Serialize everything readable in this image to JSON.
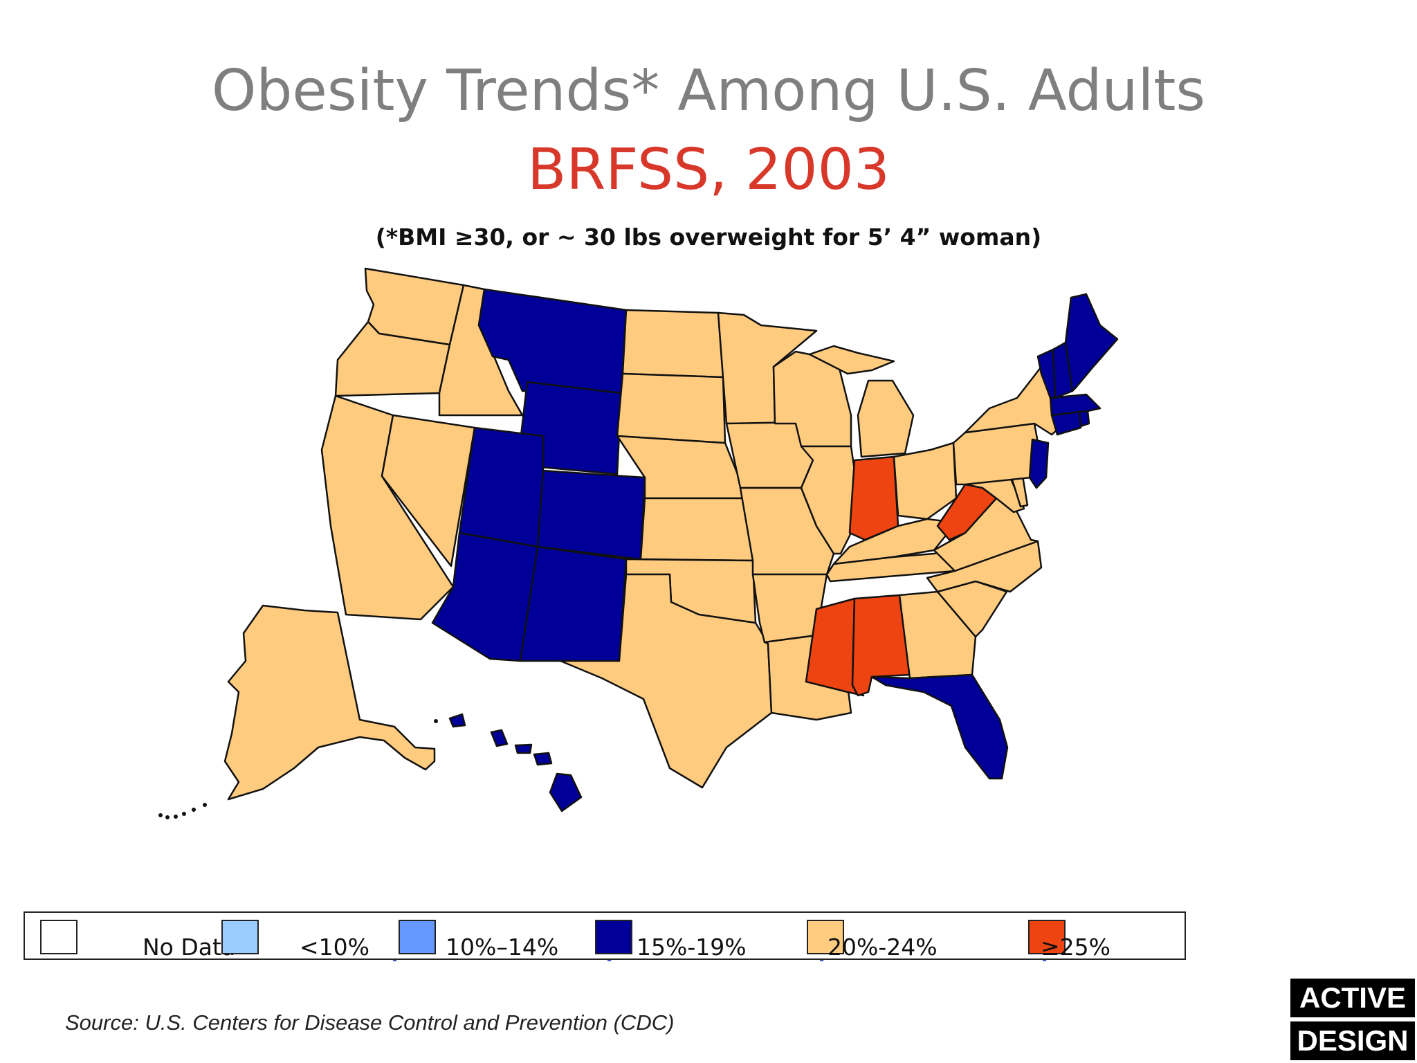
{
  "title": "Obesity Trends* Among U.S. Adults",
  "subtitle": "BRFSS, 2003",
  "note": "(*BMI ≥30, or ~ 30 lbs overweight for 5’ 4” woman)",
  "source": "Source: U.S. Centers for Disease Control and Prevention (CDC)",
  "logo": {
    "line1": "ACTIVE",
    "line2": "DESIGN"
  },
  "colors": {
    "no_data": "#ffffff",
    "lt10": "#99ccff",
    "p10_14": "#6699ff",
    "p15_19": "#000099",
    "p20_24": "#ffcc7f",
    "ge25": "#ee4411",
    "border": "#111111"
  },
  "legend": [
    {
      "label": "No Data",
      "color": "#ffffff"
    },
    {
      "label": "<10%",
      "color": "#99ccff"
    },
    {
      "label": "10%–14%",
      "color": "#6699ff"
    },
    {
      "label": "15%-19%",
      "color": "#000099"
    },
    {
      "label": "20%-24%",
      "color": "#ffcc7f"
    },
    {
      "label": "≥25%",
      "color": "#ee4411"
    }
  ],
  "state_category": {
    "WA": "20-24",
    "OR": "20-24",
    "CA": "20-24",
    "NV": "20-24",
    "ID": "20-24",
    "MT": "15-19",
    "WY": "15-19",
    "UT": "15-19",
    "CO": "15-19",
    "AZ": "15-19",
    "NM": "15-19",
    "ND": "20-24",
    "SD": "20-24",
    "NE": "20-24",
    "KS": "20-24",
    "OK": "20-24",
    "TX": "20-24",
    "MN": "20-24",
    "IA": "20-24",
    "MO": "20-24",
    "AR": "20-24",
    "LA": "20-24",
    "WI": "20-24",
    "IL": "20-24",
    "MI": "20-24",
    "IN": "25+",
    "OH": "20-24",
    "KY": "20-24",
    "TN": "20-24",
    "MS": "25+",
    "AL": "25+",
    "GA": "20-24",
    "FL": "15-19",
    "SC": "20-24",
    "NC": "20-24",
    "VA": "20-24",
    "WV": "25+",
    "MD": "20-24",
    "DE": "20-24",
    "PA": "20-24",
    "NJ": "15-19",
    "NY": "20-24",
    "CT": "15-19",
    "RI": "15-19",
    "MA": "15-19",
    "VT": "15-19",
    "NH": "15-19",
    "ME": "15-19",
    "AK": "20-24",
    "HI": "15-19"
  }
}
